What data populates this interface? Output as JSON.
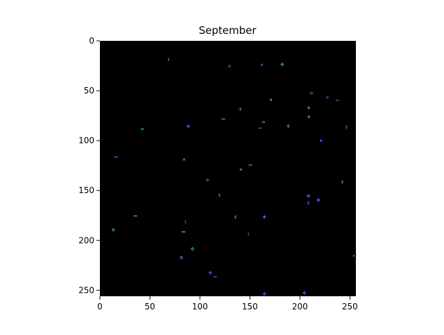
{
  "chart_data": {
    "type": "heatmap",
    "title": "September",
    "xlabel": "",
    "ylabel": "",
    "xlim": [
      0,
      256
    ],
    "ylim": [
      256,
      0
    ],
    "x_ticks": [
      0,
      50,
      100,
      150,
      200,
      250
    ],
    "y_ticks": [
      0,
      50,
      100,
      150,
      200,
      250
    ],
    "x_tick_labels": [
      "0",
      "50",
      "100",
      "150",
      "200",
      "250"
    ],
    "y_tick_labels": [
      "0",
      "50",
      "100",
      "150",
      "200",
      "250"
    ],
    "grid": false,
    "legend": "none",
    "grid_size": [
      256,
      256
    ],
    "colors": {
      "background": "#000000",
      "cell_blue": "#3a3af0",
      "cell_green": "#16a83c",
      "cell_purple": "#7a2ee0",
      "cell_teal": "#1c8f8a"
    },
    "pattern": "sparse-cellular-automaton-clusters"
  }
}
